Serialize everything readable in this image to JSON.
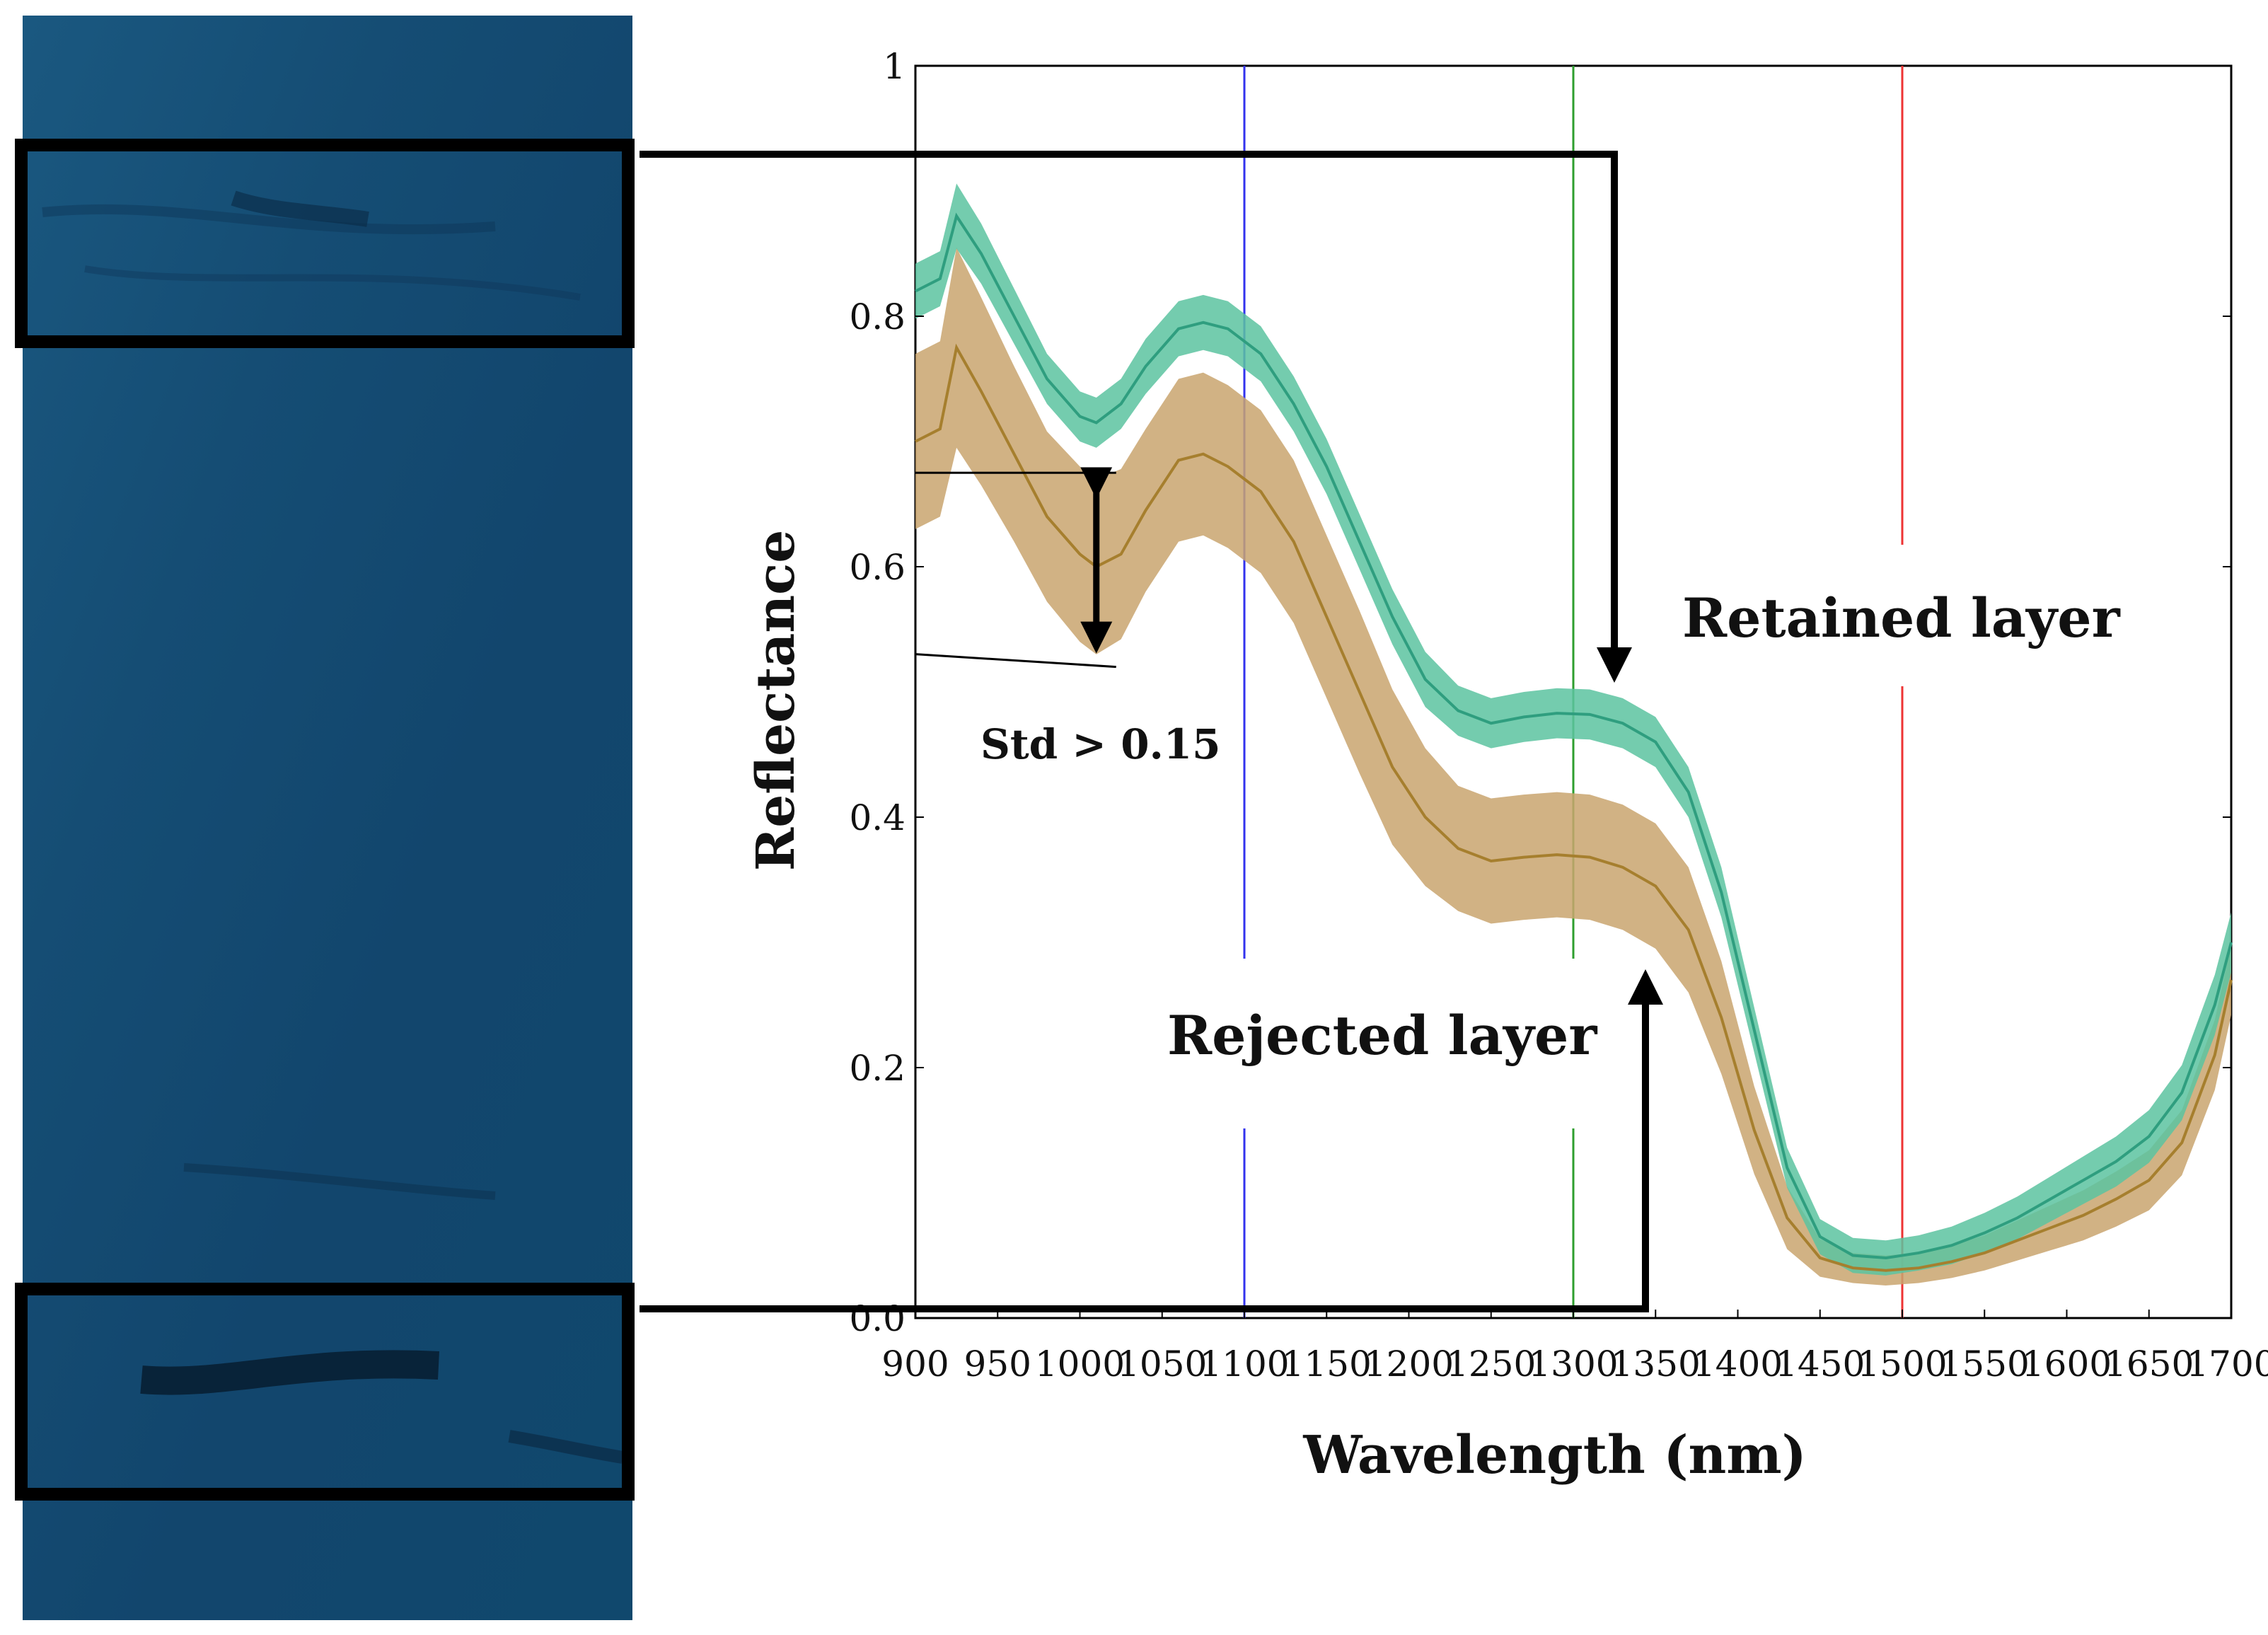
{
  "chart_data": {
    "type": "line",
    "title": "",
    "xlabel": "Wavelength (nm)",
    "ylabel": "Reflectance",
    "xlim": [
      900,
      1700
    ],
    "ylim": [
      0,
      1
    ],
    "x_ticks": [
      "900",
      "950",
      "1000",
      "1050",
      "1100",
      "1150",
      "1200",
      "1250",
      "1300",
      "1350",
      "1400",
      "1450",
      "1500",
      "1550",
      "1600",
      "1650",
      "1700"
    ],
    "y_ticks": [
      "0.0",
      "0.2",
      "0.4",
      "0.6",
      "0.8",
      "1"
    ],
    "grid": false,
    "reference_lines": [
      {
        "wavelength": 1100,
        "color": "#3333ee"
      },
      {
        "wavelength": 1300,
        "color": "#2e9e2e"
      },
      {
        "wavelength": 1500,
        "color": "#ee3333"
      }
    ],
    "series": [
      {
        "name": "Retained layer",
        "line_color": "#2f9e7f",
        "band_color": "#5cc3a0",
        "x": [
          900,
          915,
          925,
          940,
          960,
          980,
          1000,
          1010,
          1025,
          1040,
          1060,
          1075,
          1090,
          1110,
          1130,
          1150,
          1170,
          1190,
          1210,
          1230,
          1250,
          1270,
          1290,
          1310,
          1330,
          1350,
          1370,
          1390,
          1410,
          1430,
          1450,
          1470,
          1490,
          1510,
          1530,
          1550,
          1570,
          1590,
          1610,
          1630,
          1650,
          1670,
          1690,
          1700
        ],
        "mean": [
          0.82,
          0.83,
          0.88,
          0.85,
          0.8,
          0.75,
          0.72,
          0.715,
          0.73,
          0.76,
          0.79,
          0.795,
          0.79,
          0.77,
          0.73,
          0.68,
          0.62,
          0.56,
          0.51,
          0.485,
          0.475,
          0.48,
          0.483,
          0.482,
          0.475,
          0.46,
          0.42,
          0.34,
          0.23,
          0.12,
          0.065,
          0.05,
          0.048,
          0.052,
          0.058,
          0.068,
          0.08,
          0.095,
          0.11,
          0.125,
          0.145,
          0.18,
          0.25,
          0.3
        ],
        "std": [
          0.022,
          0.022,
          0.026,
          0.024,
          0.022,
          0.02,
          0.02,
          0.02,
          0.02,
          0.022,
          0.022,
          0.022,
          0.022,
          0.022,
          0.022,
          0.022,
          0.022,
          0.022,
          0.022,
          0.02,
          0.02,
          0.02,
          0.02,
          0.02,
          0.02,
          0.02,
          0.02,
          0.02,
          0.018,
          0.016,
          0.014,
          0.014,
          0.014,
          0.014,
          0.015,
          0.016,
          0.017,
          0.018,
          0.019,
          0.02,
          0.021,
          0.022,
          0.024,
          0.024
        ]
      },
      {
        "name": "Rejected layer",
        "line_color": "#a67f2e",
        "band_color": "#c9a56e",
        "x": [
          900,
          915,
          925,
          940,
          960,
          980,
          1000,
          1010,
          1025,
          1040,
          1060,
          1075,
          1090,
          1110,
          1130,
          1150,
          1170,
          1190,
          1210,
          1230,
          1250,
          1270,
          1290,
          1310,
          1330,
          1350,
          1370,
          1390,
          1410,
          1430,
          1450,
          1470,
          1490,
          1510,
          1530,
          1550,
          1570,
          1590,
          1610,
          1630,
          1650,
          1670,
          1690,
          1700
        ],
        "mean": [
          0.7,
          0.71,
          0.775,
          0.74,
          0.69,
          0.64,
          0.61,
          0.6,
          0.61,
          0.645,
          0.685,
          0.69,
          0.68,
          0.66,
          0.62,
          0.56,
          0.5,
          0.44,
          0.4,
          0.375,
          0.365,
          0.368,
          0.37,
          0.368,
          0.36,
          0.345,
          0.31,
          0.24,
          0.15,
          0.08,
          0.048,
          0.04,
          0.038,
          0.04,
          0.045,
          0.052,
          0.062,
          0.072,
          0.082,
          0.095,
          0.11,
          0.14,
          0.21,
          0.27
        ],
        "std": [
          0.07,
          0.07,
          0.08,
          0.075,
          0.07,
          0.068,
          0.07,
          0.07,
          0.068,
          0.065,
          0.065,
          0.065,
          0.065,
          0.065,
          0.065,
          0.065,
          0.065,
          0.062,
          0.055,
          0.05,
          0.05,
          0.05,
          0.05,
          0.05,
          0.05,
          0.05,
          0.05,
          0.045,
          0.035,
          0.025,
          0.015,
          0.012,
          0.012,
          0.012,
          0.013,
          0.014,
          0.016,
          0.018,
          0.02,
          0.022,
          0.024,
          0.026,
          0.028,
          0.028
        ]
      }
    ],
    "annotations": [
      {
        "text": "Retained layer",
        "target": "top sample box"
      },
      {
        "text": "Rejected layer",
        "target": "bottom sample box"
      },
      {
        "text": "Std > 0.15",
        "span": [
          0.52,
          0.675
        ],
        "at_wavelength": 1010
      }
    ]
  },
  "panel": {
    "image_name": "hyperspectral sample strip",
    "top_box_name": "retained region",
    "bottom_box_name": "rejected region"
  }
}
